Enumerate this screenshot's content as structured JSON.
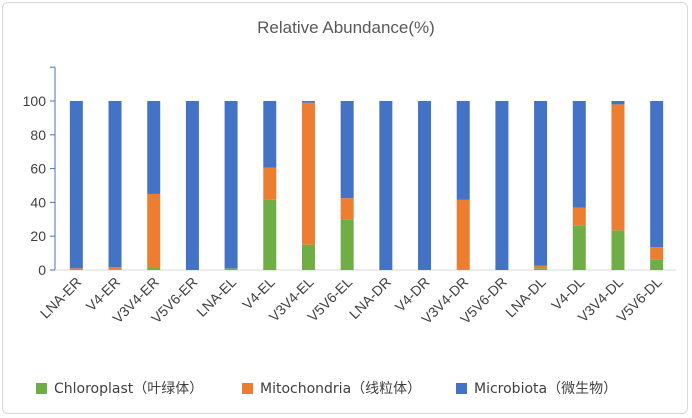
{
  "chart_data": {
    "type": "bar",
    "stacked": true,
    "title": "Relative Abundance(%)",
    "xlabel": "",
    "ylabel": "",
    "ylim": [
      0,
      120
    ],
    "yticks": [
      0,
      20,
      40,
      60,
      80,
      100
    ],
    "y_extra_tick_marks": [
      120
    ],
    "legend_position": "bottom",
    "categories": [
      "LNA-ER",
      "V4-ER",
      "V3V4-ER",
      "V5V6-ER",
      "LNA-EL",
      "V4-EL",
      "V3V4-EL",
      "V5V6-EL",
      "LNA-DR",
      "V4-DR",
      "V3V4-DR",
      "V5V6-DR",
      "LNA-DL",
      "V4-DL",
      "V3V4-DL",
      "V5V6-DL"
    ],
    "series": [
      {
        "name": "Chloroplast（叶绿体）",
        "color": "#70ad47",
        "values": [
          0.3,
          0.5,
          1.5,
          0,
          1,
          41.5,
          15,
          30,
          0,
          0,
          0.5,
          0,
          1,
          26.5,
          23.5,
          6
        ]
      },
      {
        "name": "Mitochondria（线粒体）",
        "color": "#ed7d31",
        "values": [
          0.7,
          1.2,
          43.5,
          0,
          0,
          19,
          84,
          12.5,
          0,
          0,
          41,
          0,
          1.5,
          10.5,
          74.5,
          7.5
        ]
      },
      {
        "name": "Microbiota（微生物）",
        "color": "#4472c4",
        "values": [
          99,
          98.3,
          55,
          100,
          99,
          39.5,
          1,
          57.5,
          100,
          100,
          58.5,
          100,
          97.5,
          63,
          2,
          86.5
        ]
      }
    ]
  }
}
